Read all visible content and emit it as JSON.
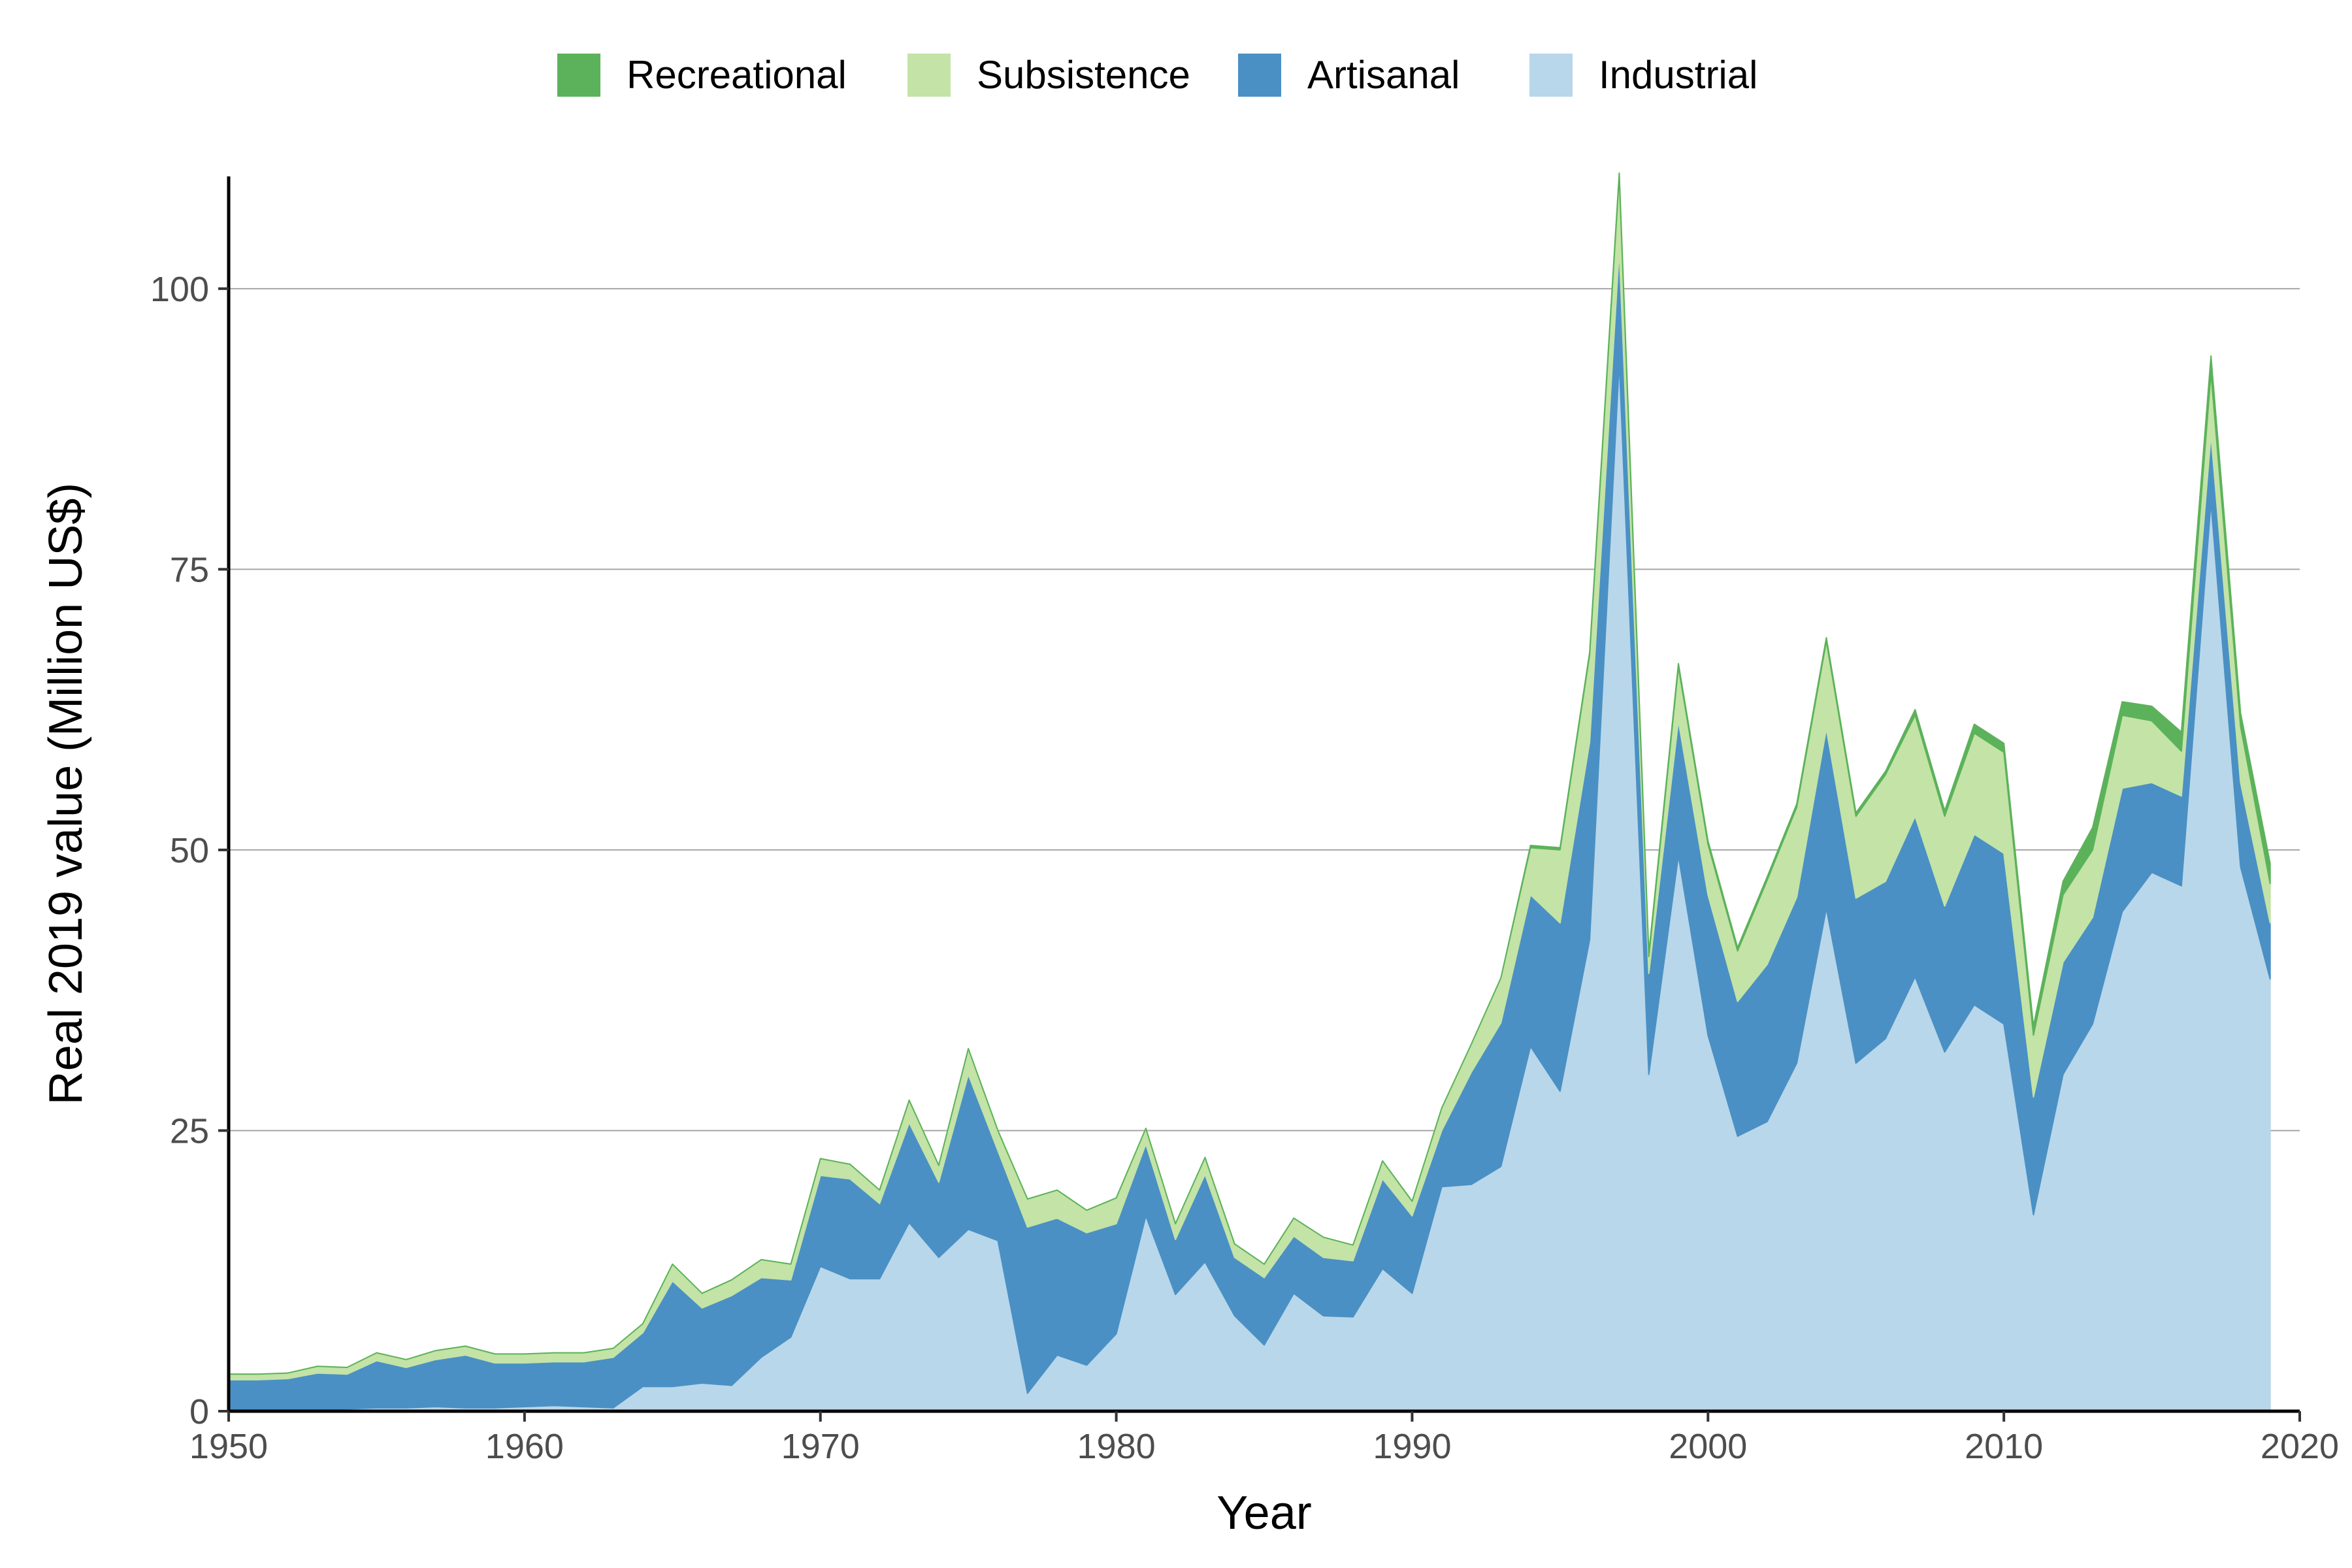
{
  "chart_data": {
    "type": "area",
    "stacked": true,
    "xlabel": "Year",
    "ylabel": "Real 2019 value (Million US$)",
    "xlim": [
      1950,
      2020
    ],
    "ylim": [
      0,
      110
    ],
    "x_ticks": [
      1950,
      1960,
      1970,
      1980,
      1990,
      2000,
      2010,
      2020
    ],
    "y_ticks": [
      0,
      25,
      50,
      75,
      100
    ],
    "grid": "horizontal major",
    "legend_position": "top",
    "x": [
      1950,
      1951,
      1952,
      1953,
      1954,
      1955,
      1956,
      1957,
      1958,
      1959,
      1960,
      1961,
      1962,
      1963,
      1964,
      1965,
      1966,
      1967,
      1968,
      1969,
      1970,
      1971,
      1972,
      1973,
      1974,
      1975,
      1976,
      1977,
      1978,
      1979,
      1980,
      1981,
      1982,
      1983,
      1984,
      1985,
      1986,
      1987,
      1988,
      1989,
      1990,
      1991,
      1992,
      1993,
      1994,
      1995,
      1996,
      1997,
      1998,
      1999,
      2000,
      2001,
      2002,
      2003,
      2004,
      2005,
      2006,
      2007,
      2008,
      2009,
      2010,
      2011,
      2012,
      2013,
      2014,
      2015,
      2016,
      2017,
      2018,
      2019
    ],
    "series": [
      {
        "name": "Industrial",
        "color": "#b9d7ea",
        "values": [
          0.2,
          0.2,
          0.2,
          0.2,
          0.2,
          0.3,
          0.3,
          0.4,
          0.3,
          0.3,
          0.4,
          0.5,
          0.4,
          0.3,
          2.2,
          2.2,
          2.5,
          2.3,
          4.8,
          6.6,
          12.9,
          11.8,
          11.8,
          16.8,
          13.7,
          16.2,
          15.2,
          1.6,
          5.0,
          4.1,
          6.9,
          17.4,
          10.4,
          13.3,
          8.5,
          5.9,
          10.5,
          8.5,
          8.4,
          12.7,
          10.5,
          20.0,
          20.2,
          21.8,
          32.5,
          28.5,
          42.0,
          93.5,
          30.0,
          49.5,
          33.5,
          24.5,
          25.8,
          31.0,
          44.8,
          31.0,
          33.2,
          38.7,
          32.0,
          36.2,
          34.5,
          17.5,
          30.0,
          34.5,
          44.5,
          48.0,
          46.8,
          81.0,
          48.5,
          38.5
        ]
      },
      {
        "name": "Artisanal",
        "color": "#4a90c4",
        "values": [
          2.6,
          2.6,
          2.7,
          3.2,
          3.1,
          4.2,
          3.6,
          4.2,
          4.7,
          4.0,
          3.9,
          3.9,
          4.0,
          4.5,
          4.8,
          9.4,
          6.7,
          8.0,
          7.1,
          5.1,
          8.1,
          8.9,
          6.7,
          8.9,
          6.7,
          13.8,
          8.0,
          14.8,
          12.2,
          11.8,
          9.8,
          6.4,
          4.9,
          7.8,
          5.2,
          6.0,
          5.1,
          5.2,
          5.0,
          8.0,
          6.9,
          5.0,
          10.0,
          12.8,
          13.5,
          15.0,
          17.6,
          10.0,
          9.0,
          12.0,
          12.5,
          12.0,
          14.0,
          14.8,
          16.0,
          14.7,
          14.0,
          14.3,
          13.0,
          15.2,
          15.2,
          10.5,
          10.0,
          9.5,
          11.0,
          8.0,
          8.0,
          6.0,
          7.5,
          5.0
        ]
      },
      {
        "name": "Subsistence",
        "color": "#c3e3a7",
        "values": [
          0.5,
          0.5,
          0.5,
          0.6,
          0.6,
          0.7,
          0.7,
          0.8,
          0.8,
          0.8,
          0.8,
          0.8,
          0.8,
          0.8,
          0.8,
          1.5,
          1.3,
          1.4,
          1.6,
          1.4,
          1.5,
          1.3,
          1.2,
          2.0,
          1.5,
          2.3,
          1.8,
          2.5,
          2.5,
          2.0,
          2.3,
          1.4,
          1.4,
          1.5,
          1.2,
          1.2,
          1.6,
          1.8,
          1.4,
          1.6,
          1.3,
          2.0,
          2.5,
          4.0,
          4.2,
          6.5,
          7.8,
          6.5,
          1.5,
          4.8,
          4.5,
          4.5,
          7.5,
          8.0,
          7.8,
          7.3,
          9.5,
          9.0,
          8.0,
          9.0,
          9.0,
          5.5,
          6.0,
          6.0,
          6.5,
          5.5,
          4.0,
          5.5,
          5.0,
          3.5
        ]
      },
      {
        "name": "Recreational",
        "color": "#5cb25a",
        "values": [
          0,
          0,
          0,
          0,
          0,
          0,
          0,
          0,
          0,
          0,
          0,
          0,
          0,
          0,
          0,
          0,
          0,
          0,
          0,
          0,
          0,
          0,
          0,
          0,
          0,
          0,
          0,
          0,
          0,
          0,
          0,
          0,
          0,
          0,
          0,
          0,
          0,
          0,
          0,
          0,
          0,
          0,
          0,
          0,
          0.2,
          0.2,
          0.2,
          0.3,
          0.3,
          0.3,
          0.3,
          0.3,
          0.3,
          0.3,
          0.3,
          0.3,
          0.3,
          0.5,
          0.5,
          0.8,
          0.8,
          0.8,
          1.2,
          2.0,
          1.2,
          1.3,
          1.7,
          1.5,
          1.2,
          1.8
        ]
      }
    ]
  }
}
